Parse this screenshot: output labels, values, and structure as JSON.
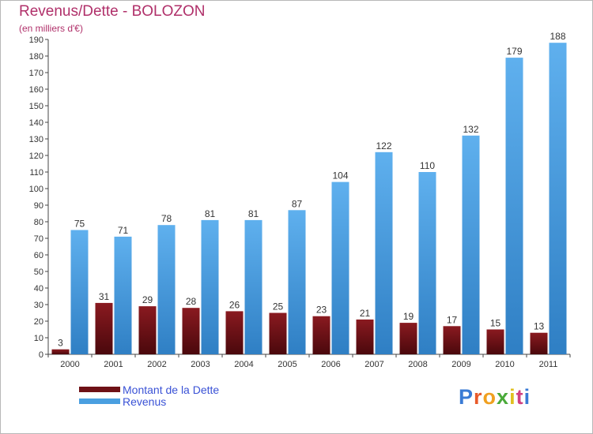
{
  "chart_data": {
    "type": "bar",
    "title": "Revenus/Dette - BOLOZON",
    "subtitle": "(en milliers d'€)",
    "categories": [
      "2000",
      "2001",
      "2002",
      "2003",
      "2004",
      "2005",
      "2006",
      "2007",
      "2008",
      "2009",
      "2010",
      "2011"
    ],
    "series": [
      {
        "name": "Montant de la Dette",
        "values": [
          3,
          31,
          29,
          28,
          26,
          25,
          23,
          21,
          19,
          17,
          15,
          13
        ],
        "color": "#6e1116"
      },
      {
        "name": "Revenus",
        "values": [
          75,
          71,
          78,
          81,
          81,
          87,
          104,
          122,
          110,
          132,
          179,
          188
        ],
        "color": "#4a9fe0"
      }
    ],
    "ylim": [
      0,
      190
    ],
    "ytick_step": 10,
    "grid": false,
    "legend_position": "bottom-left"
  },
  "logo": {
    "text": "Proxiti",
    "colors": [
      "#3a7bd5",
      "#e85a2a",
      "#f0a020",
      "#4aaa3a",
      "#e0c020",
      "#d04080",
      "#3a7bd5"
    ]
  }
}
